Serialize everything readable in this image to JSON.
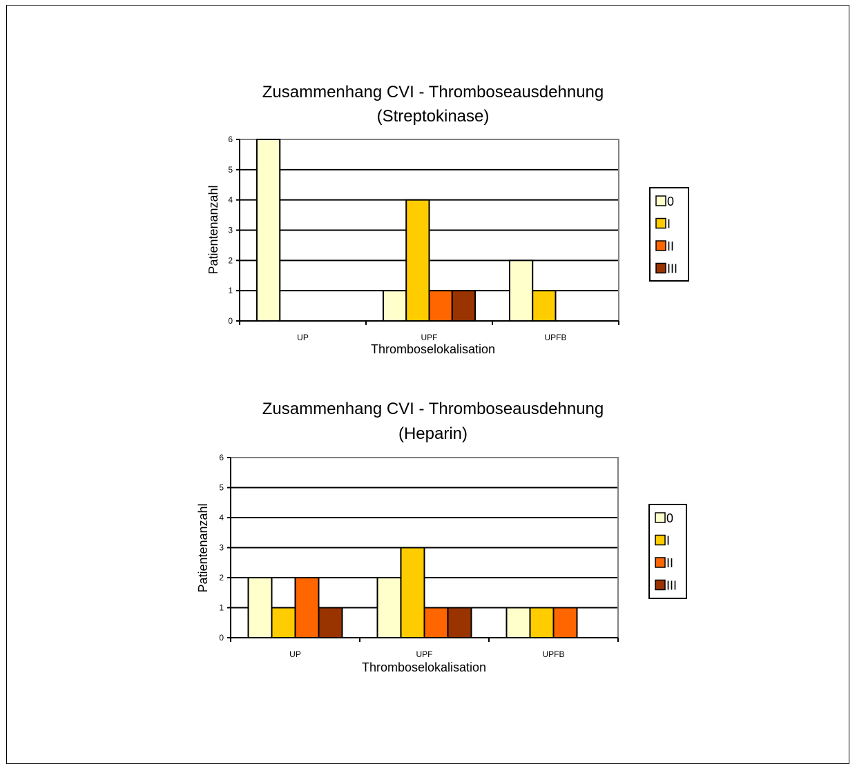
{
  "colors": {
    "cat_0": "#FFFFCC",
    "cat_I": "#FFCC00",
    "cat_II": "#FF6600",
    "cat_III": "#993300",
    "gridline": "#000000",
    "plot_border": "#808080"
  },
  "chart_data": [
    {
      "type": "bar",
      "title": "Zusammenhang CVI - Thromboseausdehnung",
      "subtitle": "(Streptokinase)",
      "xlabel": "Thromboselokalisation",
      "ylabel": "Patientenanzahl",
      "categories": [
        "UP",
        "UPF",
        "UPFB"
      ],
      "ylim": [
        0,
        6
      ],
      "yticks": [
        "0",
        "1",
        "2",
        "3",
        "4",
        "5",
        "6"
      ],
      "grid": true,
      "legend_position": "right",
      "series": [
        {
          "name": "0",
          "values": [
            6,
            1,
            2
          ]
        },
        {
          "name": "I",
          "values": [
            0,
            4,
            1
          ]
        },
        {
          "name": "II",
          "values": [
            0,
            1,
            0
          ]
        },
        {
          "name": "III",
          "values": [
            0,
            1,
            0
          ]
        }
      ]
    },
    {
      "type": "bar",
      "title": "Zusammenhang CVI - Thromboseausdehnung",
      "subtitle": "(Heparin)",
      "xlabel": "Thromboselokalisation",
      "ylabel": "Patientenanzahl",
      "categories": [
        "UP",
        "UPF",
        "UPFB"
      ],
      "ylim": [
        0,
        6
      ],
      "yticks": [
        "0",
        "1",
        "2",
        "3",
        "4",
        "5",
        "6"
      ],
      "grid": true,
      "legend_position": "right",
      "series": [
        {
          "name": "0",
          "values": [
            2,
            2,
            1
          ]
        },
        {
          "name": "I",
          "values": [
            1,
            3,
            1
          ]
        },
        {
          "name": "II",
          "values": [
            2,
            1,
            1
          ]
        },
        {
          "name": "III",
          "values": [
            1,
            1,
            0
          ]
        }
      ]
    }
  ]
}
